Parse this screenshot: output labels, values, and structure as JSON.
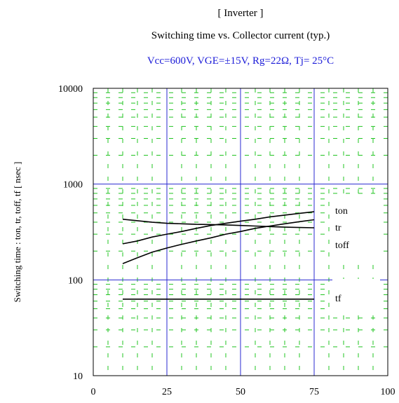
{
  "header": {
    "title": "[ Inverter ]",
    "subtitle": "Switching time  vs.  Collector current  (typ.)",
    "conditions": "Vcc=600V, VGE=±15V, Rg=22Ω, Tj= 25°C"
  },
  "colors": {
    "major_grid": "#2a2ad0",
    "minor_grid": "#22c422",
    "curve": "#000000",
    "conditions_text": "#1a1ad8"
  },
  "chart_data": {
    "type": "line",
    "title": "Switching time  vs.  Collector current  (typ.)",
    "xlabel": "",
    "ylabel": "Switching time  :  ton, tr, toff, tf  [ nsec ]",
    "xlim": [
      0,
      100
    ],
    "ylim": [
      10,
      10000
    ],
    "yscale": "log",
    "grid": true,
    "x_ticks": [
      "0",
      "25",
      "50",
      "75",
      "100"
    ],
    "y_ticks": [
      "10",
      "100",
      "1000",
      "10000"
    ],
    "series": [
      {
        "name": "ton",
        "x": [
          10,
          15,
          20,
          25,
          30,
          35,
          40,
          45,
          50,
          55,
          60,
          65,
          70,
          75
        ],
        "y": [
          430,
          415,
          400,
          390,
          385,
          380,
          378,
          375,
          370,
          365,
          360,
          355,
          352,
          350
        ]
      },
      {
        "name": "tr",
        "x": [
          10,
          15,
          20,
          25,
          30,
          35,
          40,
          45,
          50,
          55,
          60,
          65,
          70,
          75
        ],
        "y": [
          238,
          255,
          280,
          300,
          320,
          345,
          370,
          390,
          410,
          430,
          455,
          475,
          495,
          515
        ]
      },
      {
        "name": "toff",
        "x": [
          10,
          15,
          20,
          25,
          30,
          35,
          40,
          45,
          50,
          55,
          60,
          65,
          70,
          75
        ],
        "y": [
          148,
          170,
          195,
          215,
          235,
          255,
          275,
          300,
          320,
          345,
          365,
          385,
          405,
          425
        ]
      },
      {
        "name": "tf",
        "x": [
          10,
          75
        ],
        "y": [
          63,
          63
        ]
      }
    ]
  }
}
